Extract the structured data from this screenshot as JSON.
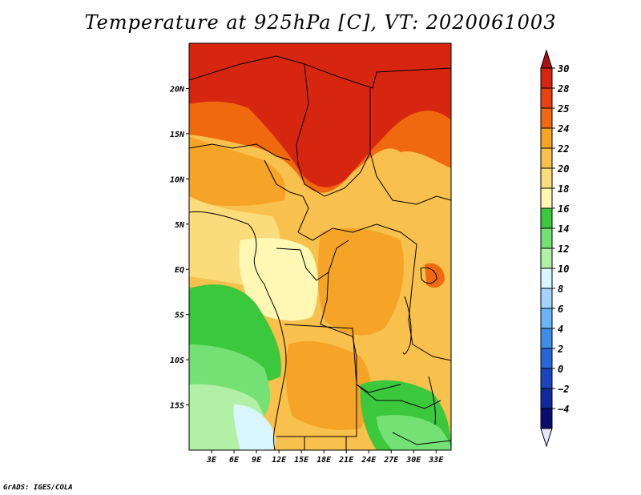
{
  "title": "Temperature at 925hPa [C], VT: 2020061003",
  "credit": "GrADS: IGES/COLA",
  "map": {
    "lon_range": [
      0,
      35
    ],
    "lat_range": [
      -20,
      25
    ],
    "x_ticks": [
      "3E",
      "6E",
      "9E",
      "12E",
      "15E",
      "18E",
      "21E",
      "24E",
      "27E",
      "30E",
      "33E"
    ],
    "y_ticks": [
      "20N",
      "15N",
      "10N",
      "5N",
      "EQ",
      "5S",
      "10S",
      "15S"
    ]
  },
  "colorbar": {
    "labels": [
      "30",
      "28",
      "25",
      "24",
      "22",
      "20",
      "18",
      "16",
      "14",
      "12",
      "10",
      "8",
      "6",
      "4",
      "2",
      "0",
      "−2",
      "−4"
    ],
    "colors": [
      "#d7260f",
      "#e9410f",
      "#f0690f",
      "#f5a428",
      "#f8c04c",
      "#fbdc7a",
      "#fef8b4",
      "#3cc83c",
      "#73e173",
      "#b2f0a5",
      "#d7f6ff",
      "#a3d3ff",
      "#6bb3f6",
      "#3d8ee9",
      "#2666d8",
      "#1a45bf",
      "#0f2a9c",
      "#0a0b6e"
    ],
    "top_overflow": "#ad0f0f",
    "bottom_overflow": "#e6e6fa"
  }
}
